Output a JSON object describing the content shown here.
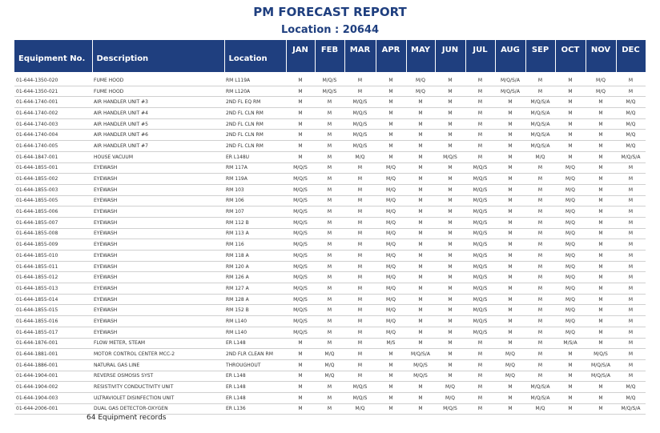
{
  "header": {
    "title": "PM FORECAST REPORT",
    "location": "Location : 20644"
  },
  "table": {
    "columns": [
      "Equipment No.",
      "Description",
      "Location",
      "JAN",
      "FEB",
      "MAR",
      "APR",
      "MAY",
      "JUN",
      "JUL",
      "AUG",
      "SEP",
      "OCT",
      "NOV",
      "DEC"
    ],
    "rows": [
      [
        "01-644-1350-020",
        "FUME HOOD",
        "RM L119A",
        "M",
        "M/Q/S",
        "M",
        "M",
        "M/Q",
        "M",
        "M",
        "M/Q/S/A",
        "M",
        "M",
        "M/Q",
        "M"
      ],
      [
        "01-644-1350-021",
        "FUME HOOD",
        "RM L120A",
        "M",
        "M/Q/S",
        "M",
        "M",
        "M/Q",
        "M",
        "M",
        "M/Q/S/A",
        "M",
        "M",
        "M/Q",
        "M"
      ],
      [
        "01-644-1740-001",
        "AIR HANDLER UNIT #3",
        "2ND FL EQ RM",
        "M",
        "M",
        "M/Q/S",
        "M",
        "M",
        "M",
        "M",
        "M",
        "M/Q/S/A",
        "M",
        "M",
        "M/Q"
      ],
      [
        "01-644-1740-002",
        "AIR HANDLER UNIT #4",
        "2ND FL CLN RM",
        "M",
        "M",
        "M/Q/S",
        "M",
        "M",
        "M",
        "M",
        "M",
        "M/Q/S/A",
        "M",
        "M",
        "M/Q"
      ],
      [
        "01-644-1740-003",
        "AIR HANDLER UNIT #5",
        "2ND FL CLN RM",
        "M",
        "M",
        "M/Q/S",
        "M",
        "M",
        "M",
        "M",
        "M",
        "M/Q/S/A",
        "M",
        "M",
        "M/Q"
      ],
      [
        "01-644-1740-004",
        "AIR HANDLER UNIT #6",
        "2ND FL CLN RM",
        "M",
        "M",
        "M/Q/S",
        "M",
        "M",
        "M",
        "M",
        "M",
        "M/Q/S/A",
        "M",
        "M",
        "M/Q"
      ],
      [
        "01-644-1740-005",
        "AIR HANDLER UNIT #7",
        "2ND FL CLN RM",
        "M",
        "M",
        "M/Q/S",
        "M",
        "M",
        "M",
        "M",
        "M",
        "M/Q/S/A",
        "M",
        "M",
        "M/Q"
      ],
      [
        "01-644-1847-001",
        "HOUSE VACUUM",
        "ER L148U",
        "M",
        "M",
        "M/Q",
        "M",
        "M",
        "M/Q/S",
        "M",
        "M",
        "M/Q",
        "M",
        "M",
        "M/Q/S/A"
      ],
      [
        "01-644-1855-001",
        "EYEWASH",
        "RM 117A",
        "M/Q/S",
        "M",
        "M",
        "M/Q",
        "M",
        "M",
        "M/Q/S",
        "M",
        "M",
        "M/Q",
        "M",
        "M"
      ],
      [
        "01-644-1855-002",
        "EYEWASH",
        "RM 119A",
        "M/Q/S",
        "M",
        "M",
        "M/Q",
        "M",
        "M",
        "M/Q/S",
        "M",
        "M",
        "M/Q",
        "M",
        "M"
      ],
      [
        "01-644-1855-003",
        "EYEWASH",
        "RM 103",
        "M/Q/S",
        "M",
        "M",
        "M/Q",
        "M",
        "M",
        "M/Q/S",
        "M",
        "M",
        "M/Q",
        "M",
        "M"
      ],
      [
        "01-644-1855-005",
        "EYEWASH",
        "RM 106",
        "M/Q/S",
        "M",
        "M",
        "M/Q",
        "M",
        "M",
        "M/Q/S",
        "M",
        "M",
        "M/Q",
        "M",
        "M"
      ],
      [
        "01-644-1855-006",
        "EYEWASH",
        "RM 107",
        "M/Q/S",
        "M",
        "M",
        "M/Q",
        "M",
        "M",
        "M/Q/S",
        "M",
        "M",
        "M/Q",
        "M",
        "M"
      ],
      [
        "01-644-1855-007",
        "EYEWASH",
        "RM 112 B",
        "M/Q/S",
        "M",
        "M",
        "M/Q",
        "M",
        "M",
        "M/Q/S",
        "M",
        "M",
        "M/Q",
        "M",
        "M"
      ],
      [
        "01-644-1855-008",
        "EYEWASH",
        "RM 113 A",
        "M/Q/S",
        "M",
        "M",
        "M/Q",
        "M",
        "M",
        "M/Q/S",
        "M",
        "M",
        "M/Q",
        "M",
        "M"
      ],
      [
        "01-644-1855-009",
        "EYEWASH",
        "RM 116",
        "M/Q/S",
        "M",
        "M",
        "M/Q",
        "M",
        "M",
        "M/Q/S",
        "M",
        "M",
        "M/Q",
        "M",
        "M"
      ],
      [
        "01-644-1855-010",
        "EYEWASH",
        "RM 118 A",
        "M/Q/S",
        "M",
        "M",
        "M/Q",
        "M",
        "M",
        "M/Q/S",
        "M",
        "M",
        "M/Q",
        "M",
        "M"
      ],
      [
        "01-644-1855-011",
        "EYEWASH",
        "RM 120 A",
        "M/Q/S",
        "M",
        "M",
        "M/Q",
        "M",
        "M",
        "M/Q/S",
        "M",
        "M",
        "M/Q",
        "M",
        "M"
      ],
      [
        "01-644-1855-012",
        "EYEWASH",
        "RM 126 A",
        "M/Q/S",
        "M",
        "M",
        "M/Q",
        "M",
        "M",
        "M/Q/S",
        "M",
        "M",
        "M/Q",
        "M",
        "M"
      ],
      [
        "01-644-1855-013",
        "EYEWASH",
        "RM 127 A",
        "M/Q/S",
        "M",
        "M",
        "M/Q",
        "M",
        "M",
        "M/Q/S",
        "M",
        "M",
        "M/Q",
        "M",
        "M"
      ],
      [
        "01-644-1855-014",
        "EYEWASH",
        "RM 128 A",
        "M/Q/S",
        "M",
        "M",
        "M/Q",
        "M",
        "M",
        "M/Q/S",
        "M",
        "M",
        "M/Q",
        "M",
        "M"
      ],
      [
        "01-644-1855-015",
        "EYEWASH",
        "RM 152 B",
        "M/Q/S",
        "M",
        "M",
        "M/Q",
        "M",
        "M",
        "M/Q/S",
        "M",
        "M",
        "M/Q",
        "M",
        "M"
      ],
      [
        "01-644-1855-016",
        "EYEWASH",
        "RM L140",
        "M/Q/S",
        "M",
        "M",
        "M/Q",
        "M",
        "M",
        "M/Q/S",
        "M",
        "M",
        "M/Q",
        "M",
        "M"
      ],
      [
        "01-644-1855-017",
        "EYEWASH",
        "RM L140",
        "M/Q/S",
        "M",
        "M",
        "M/Q",
        "M",
        "M",
        "M/Q/S",
        "M",
        "M",
        "M/Q",
        "M",
        "M"
      ],
      [
        "01-644-1876-001",
        "FLOW METER, STEAM",
        "ER L148",
        "M",
        "M",
        "M",
        "M/S",
        "M",
        "M",
        "M",
        "M",
        "M",
        "M/S/A",
        "M",
        "M"
      ],
      [
        "01-644-1881-001",
        "MOTOR CONTROL CENTER MCC-2",
        "2ND FLR CLEAN RM",
        "M",
        "M/Q",
        "M",
        "M",
        "M/Q/S/A",
        "M",
        "M",
        "M/Q",
        "M",
        "M",
        "M/Q/S",
        "M"
      ],
      [
        "01-644-1886-001",
        "NATURAL GAS LINE",
        "THROUGHOUT",
        "M",
        "M/Q",
        "M",
        "M",
        "M/Q/S",
        "M",
        "M",
        "M/Q",
        "M",
        "M",
        "M/Q/S/A",
        "M"
      ],
      [
        "01-644-1904-001",
        "REVERSE OSMOSIS SYST",
        "ER L148",
        "M",
        "M/Q",
        "M",
        "M",
        "M/Q/S",
        "M",
        "M",
        "M/Q",
        "M",
        "M",
        "M/Q/S/A",
        "M"
      ],
      [
        "01-644-1904-002",
        "RESISTIVITY CONDUCTIVITY UNIT",
        "ER L148",
        "M",
        "M",
        "M/Q/S",
        "M",
        "M",
        "M/Q",
        "M",
        "M",
        "M/Q/S/A",
        "M",
        "M",
        "M/Q"
      ],
      [
        "01-644-1904-003",
        "ULTRAVIOLET DISINFECTION UNIT",
        "ER L148",
        "M",
        "M",
        "M/Q/S",
        "M",
        "M",
        "M/Q",
        "M",
        "M",
        "M/Q/S/A",
        "M",
        "M",
        "M/Q"
      ],
      [
        "01-644-2006-001",
        "DUAL GAS DETECTOR-OXYGEN",
        "ER L136",
        "M",
        "M",
        "M/Q",
        "M",
        "M",
        "M/Q/S",
        "M",
        "M",
        "M/Q",
        "M",
        "M",
        "M/Q/S/A"
      ]
    ]
  },
  "footer": "64 Equipment  records"
}
